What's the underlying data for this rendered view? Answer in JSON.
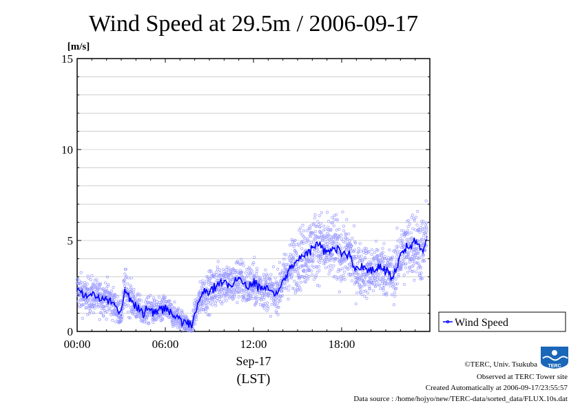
{
  "chart_data": {
    "type": "line",
    "title": "Wind Speed at 29.5m / 2006-09-17",
    "ylabel": "[m/s]",
    "xlabel_date": "Sep-17",
    "xlabel_tz": "(LST)",
    "ylim": [
      0,
      15
    ],
    "xlim_hours": [
      0,
      24
    ],
    "y_ticks": [
      "0",
      "5",
      "10",
      "15"
    ],
    "x_ticks": [
      "00:00",
      "06:00",
      "12:00",
      "18:00"
    ],
    "grid": true,
    "legend_position": "right-bottom",
    "series": [
      {
        "name": "Wind Speed",
        "color": "#0000ff",
        "x": [
          0,
          0.5,
          1,
          1.5,
          2,
          2.5,
          3,
          3.25,
          3.5,
          4,
          4.5,
          5,
          5.5,
          6,
          6.5,
          7,
          7.5,
          7.8,
          8,
          8.5,
          9,
          9.5,
          10,
          10.5,
          11,
          11.5,
          12,
          12.5,
          13,
          13.5,
          14,
          14.5,
          15,
          15.5,
          16,
          16.5,
          17,
          17.5,
          18,
          18.5,
          19,
          19.5,
          20,
          20.5,
          21,
          21.5,
          22,
          22.5,
          23,
          23.5,
          23.8
        ],
        "values": [
          2.3,
          1.9,
          2.0,
          1.8,
          1.9,
          1.5,
          0.9,
          2.4,
          2.0,
          1.4,
          1.0,
          1.2,
          1.0,
          1.3,
          0.9,
          0.7,
          0.4,
          0.2,
          1.0,
          2.0,
          2.2,
          2.5,
          2.8,
          2.5,
          2.9,
          2.5,
          2.6,
          2.4,
          2.3,
          2.0,
          2.8,
          3.5,
          3.9,
          4.2,
          4.6,
          4.8,
          4.4,
          4.6,
          4.2,
          4.3,
          3.4,
          3.4,
          3.2,
          3.5,
          3.4,
          3.0,
          4.2,
          4.6,
          4.9,
          4.4,
          5.2
        ]
      }
    ],
    "scatter_color": "#9a9aff"
  },
  "credits": {
    "line1": "©TERC, Univ. Tsukuba",
    "line2": "Observed at TERC Tower site",
    "line3": "Created Automatically at 2006-09-17/23:55:57",
    "line4": "Data source : /home/hojyo/new/TERC-data/sorted_data/FLUX.10s.dat"
  },
  "logo": {
    "text": "TERC",
    "color": "#1a66b8"
  }
}
